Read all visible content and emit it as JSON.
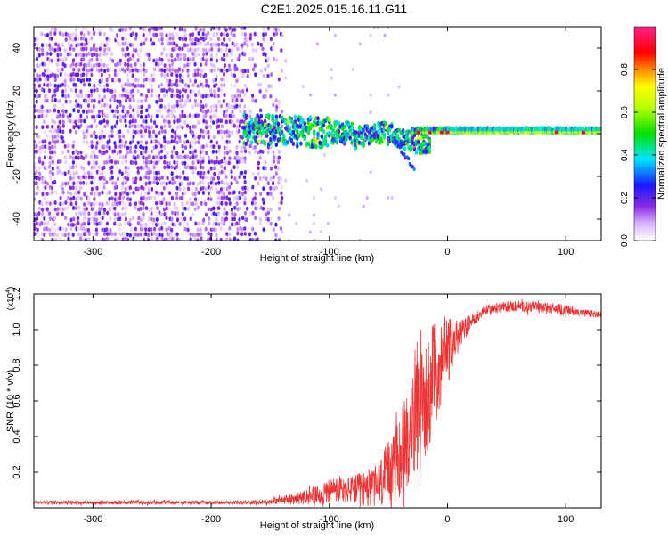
{
  "title": "C2E1.2025.015.16.11.G11",
  "chart_data": [
    {
      "type": "heatmap",
      "xlabel": "Height of straight line (km)",
      "ylabel": "Frequency (Hz)",
      "xlim": [
        -350,
        130
      ],
      "ylim": [
        -50,
        50
      ],
      "xticks": [
        -300,
        -200,
        -100,
        0,
        100
      ],
      "yticks": [
        -40,
        -20,
        0,
        20,
        40
      ],
      "colorbar": {
        "label": "Normalized spectral amplitude",
        "range": [
          0,
          1
        ],
        "ticks": [
          "0.0",
          "0.2",
          "0.4",
          "0.6",
          "0.8"
        ],
        "ticks_values": [
          0.0,
          0.2,
          0.4,
          0.6,
          0.8
        ],
        "colormap": "rainbow (white-violet-blue-cyan-green-yellow-red-magenta)"
      },
      "grid": false
    },
    {
      "type": "line",
      "xlabel": "Height of straight line (km)",
      "ylabel": "SNR (10 * v/v)",
      "multiplier": "(x10",
      "multiplier_exp": "4",
      "xlim": [
        -350,
        130
      ],
      "ylim": [
        0,
        1.2
      ],
      "xticks": [
        -300,
        -200,
        -100,
        0,
        100
      ],
      "yticks": [
        "0.2",
        "0.4",
        "0.6",
        "0.8",
        "1.0",
        "1.2"
      ],
      "yticks_values": [
        0.2,
        0.4,
        0.6,
        0.8,
        1.0,
        1.2
      ],
      "series": [
        {
          "color": "#ee3333",
          "x": [
            -350,
            -300,
            -250,
            -200,
            -170,
            -150,
            -130,
            -110,
            -100,
            -90,
            -80,
            -70,
            -60,
            -50,
            -40,
            -30,
            -20,
            -10,
            0,
            10,
            20,
            30,
            40,
            50,
            60,
            70,
            80,
            90,
            100,
            110,
            120,
            130
          ],
          "y": [
            0.03,
            0.03,
            0.03,
            0.03,
            0.03,
            0.035,
            0.05,
            0.07,
            0.09,
            0.1,
            0.1,
            0.11,
            0.12,
            0.18,
            0.3,
            0.45,
            0.6,
            0.75,
            0.88,
            0.97,
            1.05,
            1.1,
            1.12,
            1.13,
            1.13,
            1.13,
            1.12,
            1.12,
            1.11,
            1.1,
            1.09,
            1.08
          ],
          "noise_amplitude": [
            0.01,
            0.01,
            0.01,
            0.01,
            0.01,
            0.015,
            0.03,
            0.05,
            0.08,
            0.08,
            0.08,
            0.1,
            0.12,
            0.2,
            0.25,
            0.3,
            0.35,
            0.3,
            0.2,
            0.08,
            0.04,
            0.03,
            0.03,
            0.03,
            0.03,
            0.03,
            0.03,
            0.03,
            0.03,
            0.02,
            0.02,
            0.02
          ]
        }
      ],
      "grid": false
    }
  ]
}
